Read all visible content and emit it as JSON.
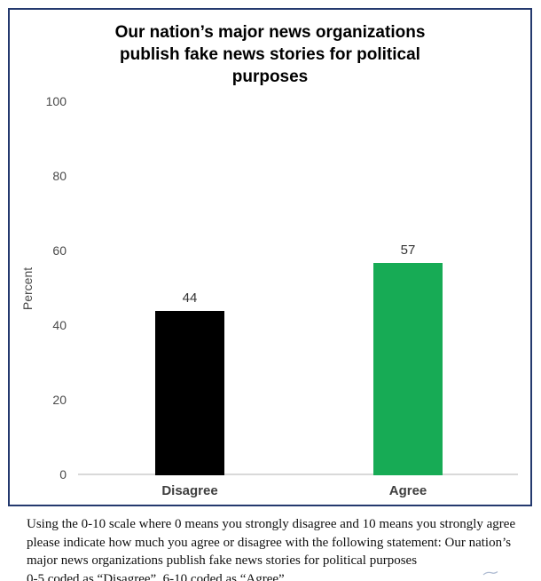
{
  "chart_data": {
    "type": "bar",
    "title": "Our nation’s major news organizations publish fake news stories for political purposes",
    "title_lines": [
      "Our nation’s major news organizations",
      "publish fake news stories for political",
      "purposes"
    ],
    "xlabel": "",
    "ylabel": "Percent",
    "ylim": [
      0,
      100
    ],
    "yticks": [
      0,
      20,
      40,
      60,
      80,
      100
    ],
    "categories": [
      "Disagree",
      "Agree"
    ],
    "values": [
      44,
      57
    ],
    "bar_colors": [
      "#000000",
      "#17ab55"
    ],
    "grid": false,
    "legend": false
  },
  "colors": {
    "frame_border": "#24396e",
    "axis_line": "#d9d9d9",
    "accent_green": "#17ab55"
  },
  "footnote": {
    "lines": [
      "Using the 0-10 scale where 0 means you strongly disagree and 10 means you strongly agree",
      "please indicate how much you agree or disagree with the following statement: Our nation’s",
      "major news organizations publish fake news stories for political purposes",
      "0-5 coded as “Disagree”, 6-10 coded as “Agree”"
    ]
  }
}
